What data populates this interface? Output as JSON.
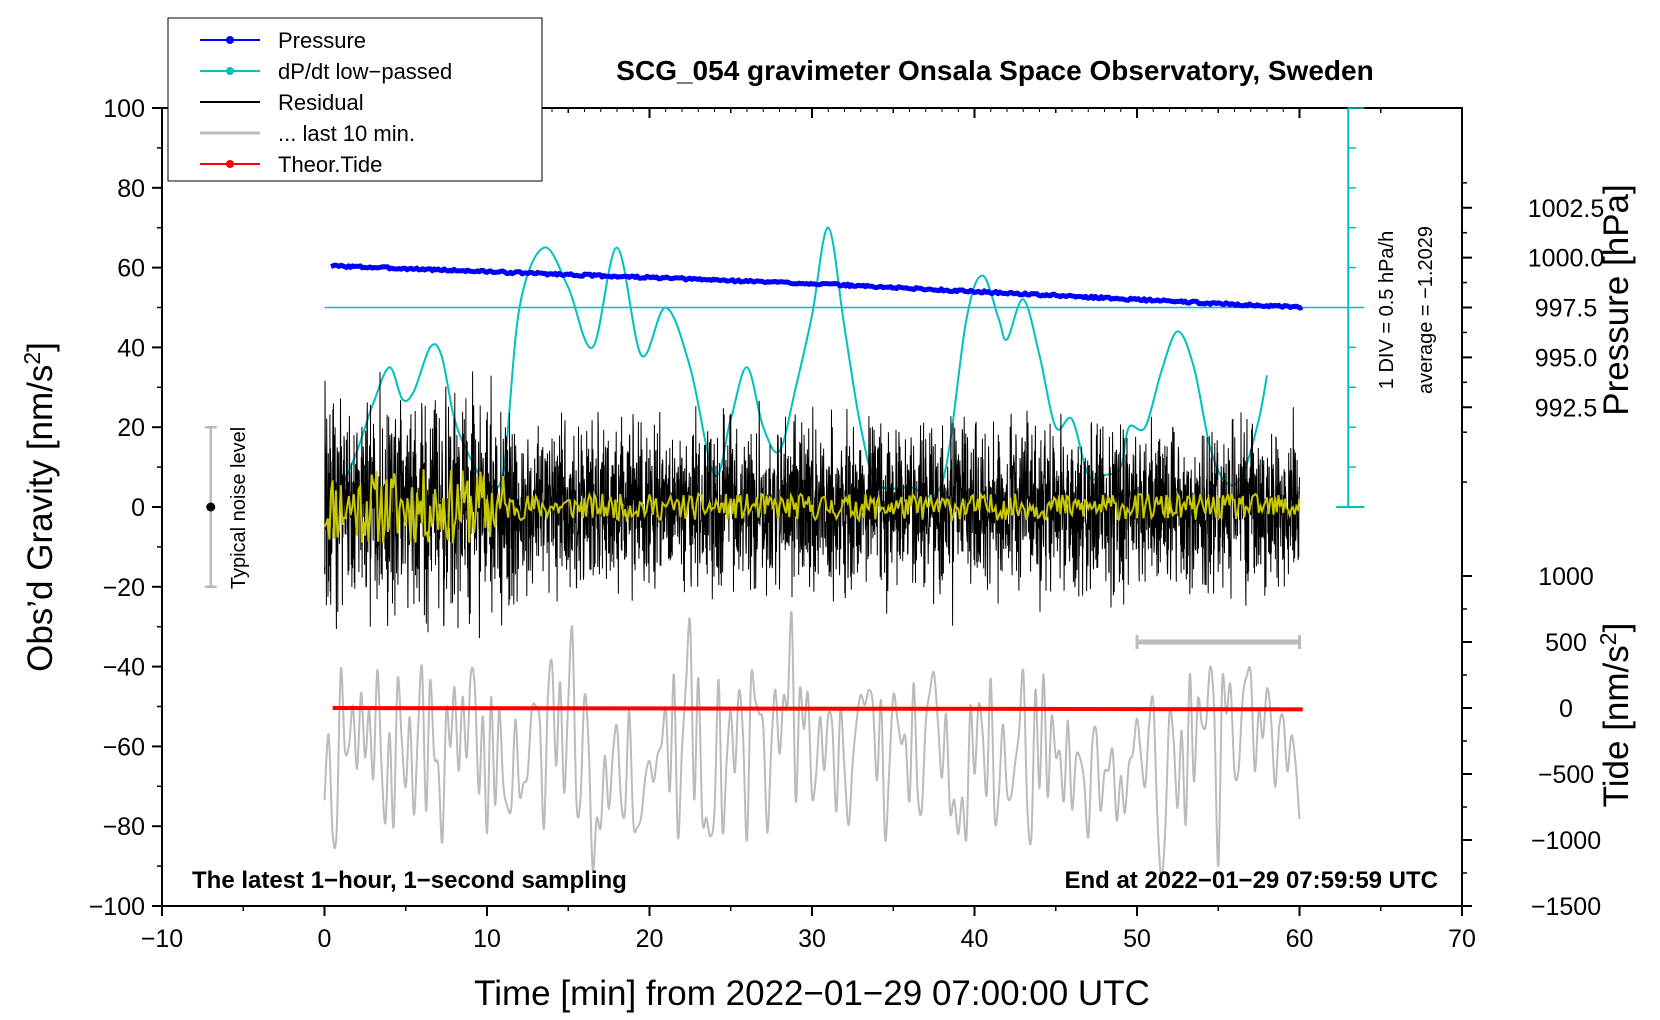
{
  "chart_data": {
    "type": "line",
    "title": "SCG_054 gravimeter Onsala Space Observatory, Sweden",
    "xlabel": "Time [min] from 2022−01−29 07:00:00 UTC",
    "ylabel": "Obs’d Gravity [nm/s",
    "ylabel_sup": "2",
    "ylabel_close": "]",
    "y2label": "Pressure [hPa]",
    "y3label": "Tide [nm/s",
    "y3label_sup": "2",
    "y3label_close": "]",
    "xlim": [
      -10,
      70
    ],
    "ylim": [
      -100,
      100
    ],
    "x_ticks": [
      -10,
      0,
      10,
      20,
      30,
      40,
      50,
      60,
      70
    ],
    "x_tick_labels": [
      "−10",
      "0",
      "10",
      "20",
      "30",
      "40",
      "50",
      "60",
      "70"
    ],
    "y_ticks": [
      -100,
      -80,
      -60,
      -40,
      -20,
      0,
      20,
      40,
      60,
      80,
      100
    ],
    "y_tick_labels": [
      "−100",
      "−80",
      "−60",
      "−40",
      "−20",
      "0",
      "20",
      "40",
      "60",
      "80",
      "100"
    ],
    "pressure_axis": {
      "range_gravity": [
        0,
        100
      ],
      "ticks": [
        992.5,
        995.0,
        997.5,
        1000.0,
        1002.5
      ],
      "tick_labels": [
        "992.5",
        "995.0",
        "997.5",
        "1000.0",
        "1002.5"
      ],
      "value_at_gravity_50": 997.5,
      "value_at_gravity_0": 987.5
    },
    "tide_axis": {
      "ticks": [
        -1500,
        -1000,
        -500,
        0,
        500,
        1000
      ],
      "tick_labels": [
        "−1500",
        "−1000",
        "−500",
        "0",
        "500",
        "1000"
      ],
      "range": [
        -1500,
        1500
      ]
    },
    "legend": [
      {
        "label": "Pressure",
        "color": "#0000ff",
        "marker": true
      },
      {
        "label": "dP/dt low−passed",
        "color": "#00c0c0",
        "marker": true
      },
      {
        "label": "Residual",
        "color": "#000000",
        "marker": false
      },
      {
        "label": "... last 10 min.",
        "color": "#bbbbbb",
        "marker": false
      },
      {
        "label": "Theor.Tide",
        "color": "#ff0000",
        "marker": true
      }
    ],
    "legend_position": "top-left",
    "annotations": {
      "bottom_left": "The latest 1−hour, 1−second sampling",
      "bottom_right": "End at 2022−01−29 07:59:59 UTC",
      "scale_div": "1 DIV = 0.5 hPa/h",
      "scale_avg": "average = −1.2029",
      "noise_label": "Typical noise level",
      "noise_range": [
        -20,
        20
      ],
      "last10_bracket_x": [
        50,
        60
      ],
      "last10_bracket_tide": 500
    },
    "series": [
      {
        "name": "Pressure",
        "color": "#0000ff",
        "unit": "hPa",
        "x": [
          0,
          10,
          20,
          30,
          40,
          50,
          60
        ],
        "values": [
          999.6,
          999.3,
          999.0,
          998.7,
          998.3,
          997.9,
          997.5
        ]
      },
      {
        "name": "dP/dt low-passed",
        "color": "#00c0c0",
        "unit": "gravity-axis units",
        "x": [
          0,
          1,
          2,
          3,
          4,
          4.8,
          5.5,
          6.5,
          7.2,
          8,
          9,
          10,
          11,
          12,
          13.5,
          15,
          16.5,
          18,
          19.5,
          21,
          22.5,
          24,
          25,
          26,
          27,
          28,
          29,
          30,
          31,
          32,
          33,
          34,
          36,
          38,
          39.5,
          40.5,
          41.5,
          42,
          43,
          44,
          45,
          46,
          47,
          48,
          49,
          49.5,
          50.5,
          51.5,
          52.5,
          53.5,
          54.5,
          55.5,
          56.5,
          57.5,
          58
        ],
        "values": [
          2,
          5,
          14,
          26,
          35,
          27,
          29,
          40,
          38,
          22,
          12,
          6,
          9,
          50,
          65,
          55,
          40,
          65,
          38,
          50,
          35,
          8,
          22,
          35,
          20,
          14,
          30,
          48,
          70,
          45,
          20,
          6,
          5,
          6,
          47,
          58,
          47,
          42,
          52,
          38,
          20,
          22,
          8,
          8,
          10,
          20,
          20,
          34,
          44,
          35,
          15,
          6,
          8,
          22,
          33
        ]
      },
      {
        "name": "Residual",
        "color": "#000000",
        "unit": "nm/s2",
        "x": [
          0,
          60
        ],
        "values": [
          0,
          0
        ],
        "amplitude": 25
      },
      {
        "name": "Residual smoothed",
        "color": "#c8c800",
        "unit": "nm/s2",
        "x": [
          0,
          60
        ],
        "values": [
          0,
          0
        ],
        "amplitude": 6
      },
      {
        "name": "... last 10 min.",
        "color": "#bbbbbb",
        "unit": "gravity-axis units",
        "x": [
          0,
          60
        ],
        "values": [
          -62,
          -62
        ],
        "amplitude": 22
      },
      {
        "name": "Theor.Tide",
        "color": "#ff0000",
        "unit": "nm/s2 (tide axis)",
        "x": [
          0,
          60
        ],
        "values": [
          0,
          -10
        ]
      }
    ]
  }
}
